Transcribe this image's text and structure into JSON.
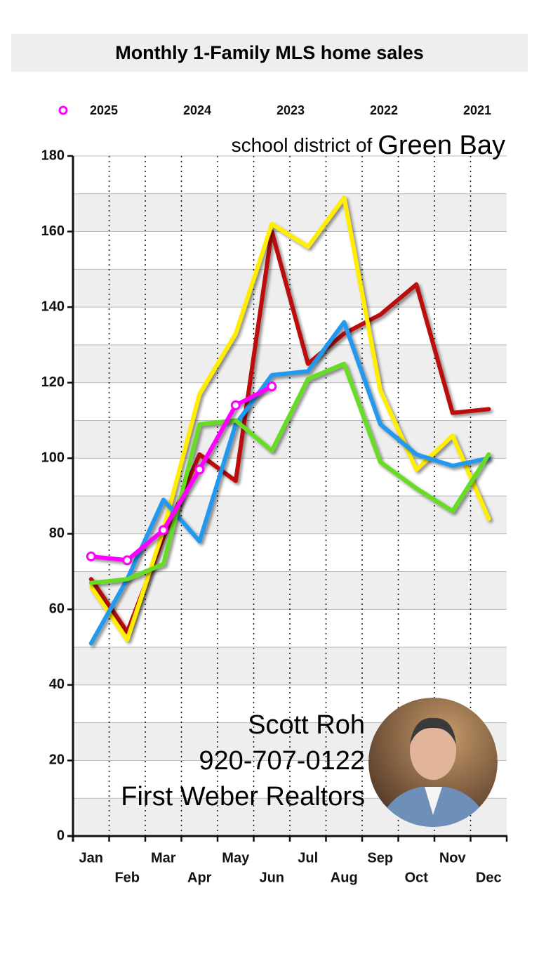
{
  "chart_data": {
    "type": "line",
    "title": "Monthly 1-Family  MLS home sales",
    "annotations": [
      "school district of",
      "Green Bay",
      "Scott Roh",
      "920-707-0122",
      "First Weber Realtors"
    ],
    "categories": [
      "Jan",
      "Feb",
      "Mar",
      "Apr",
      "May",
      "Jun",
      "Jul",
      "Aug",
      "Sep",
      "Oct",
      "Nov",
      "Dec"
    ],
    "series": [
      {
        "name": "2025",
        "color": "#ff00ff",
        "markers": true,
        "values": [
          74,
          73,
          81,
          97,
          114,
          119,
          null,
          null,
          null,
          null,
          null,
          null
        ]
      },
      {
        "name": "2024",
        "color": "#66dd22",
        "values": [
          67,
          68,
          72,
          109,
          110,
          102,
          121,
          125,
          99,
          92,
          86,
          101
        ]
      },
      {
        "name": "2023",
        "color": "#2299ee",
        "values": [
          51,
          68,
          89,
          78,
          109,
          122,
          123,
          136,
          109,
          101,
          98,
          100
        ]
      },
      {
        "name": "2022",
        "color": "#ffee00",
        "values": [
          66,
          52,
          81,
          117,
          133,
          162,
          156,
          169,
          118,
          97,
          106,
          84
        ]
      },
      {
        "name": "2021",
        "color": "#bb1111",
        "values": [
          68,
          54,
          79,
          101,
          94,
          160,
          125,
          133,
          138,
          146,
          112,
          113
        ]
      }
    ],
    "ylim": [
      0,
      180
    ],
    "yticks": [
      0,
      20,
      40,
      60,
      80,
      100,
      120,
      140,
      160,
      180
    ],
    "grid": true,
    "legend": "top"
  }
}
